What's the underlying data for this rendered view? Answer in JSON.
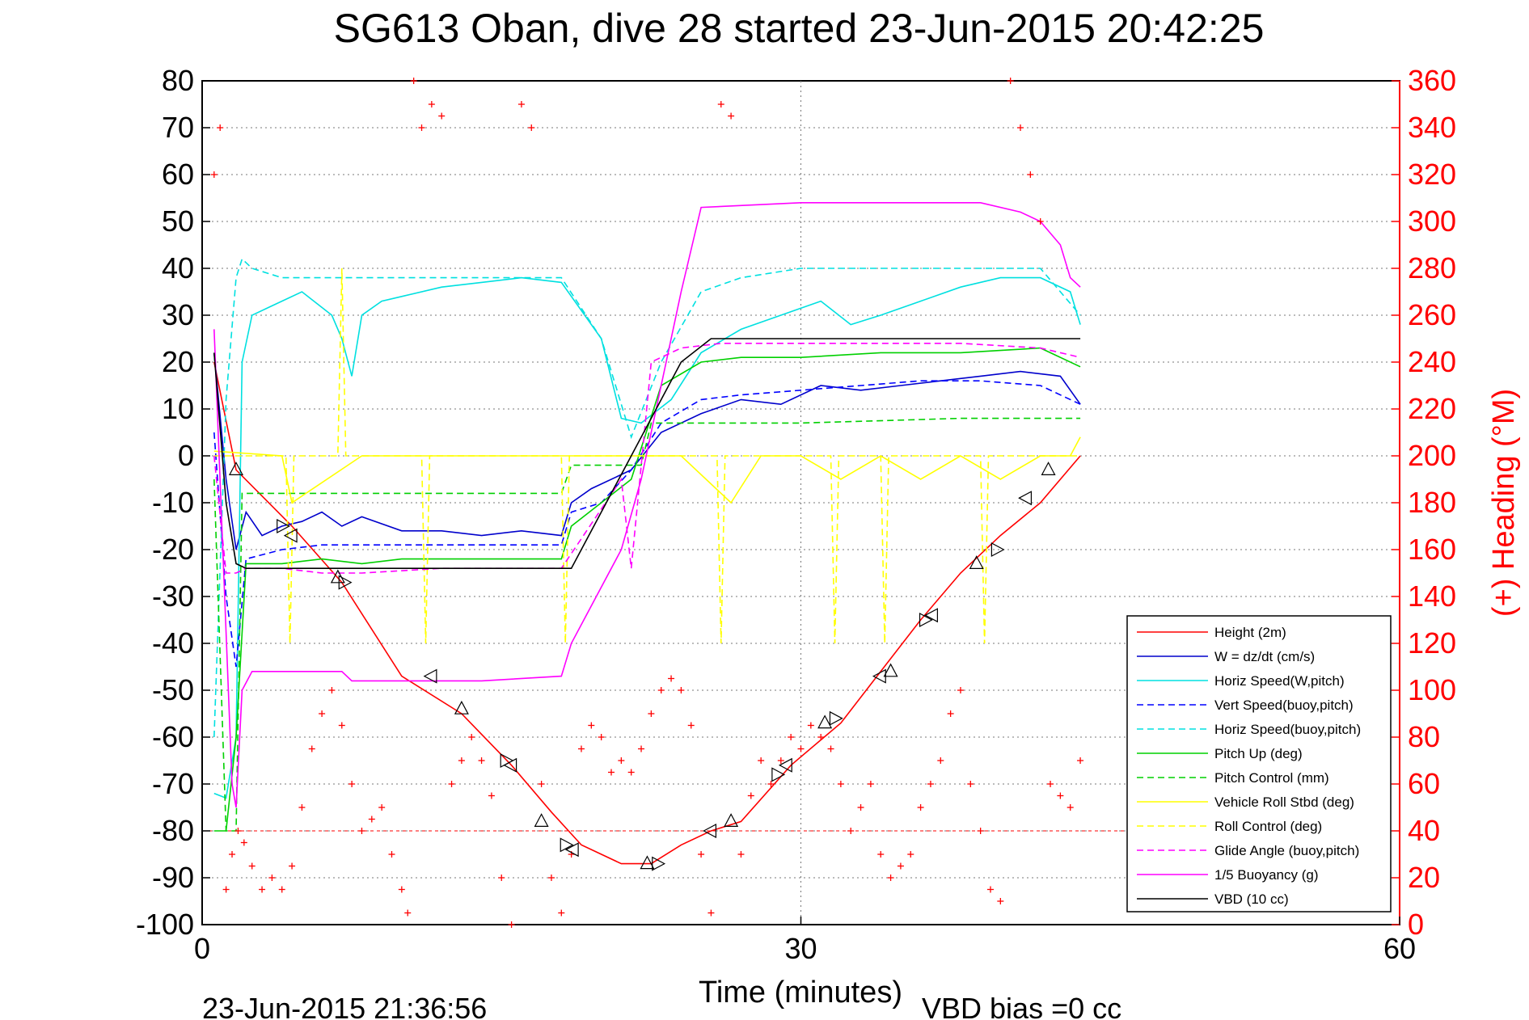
{
  "chart_data": {
    "type": "line",
    "title": "SG613 Oban, dive 28 started 23-Jun-2015 20:42:25",
    "xlabel": "Time (minutes)",
    "ylabel_right": "(+) Heading (°M)",
    "xlim": [
      0,
      60
    ],
    "ylim": [
      -100,
      80
    ],
    "ylim_right": [
      0,
      360
    ],
    "x_ticks": [
      "0",
      "30",
      "60"
    ],
    "y_ticks": [
      "80",
      "70",
      "60",
      "50",
      "40",
      "30",
      "20",
      "10",
      "0",
      "-10",
      "-20",
      "-30",
      "-40",
      "-50",
      "-60",
      "-70",
      "-80",
      "-90",
      "-100"
    ],
    "y_ticks_right": [
      "360",
      "340",
      "320",
      "300",
      "280",
      "260",
      "240",
      "220",
      "200",
      "180",
      "160",
      "140",
      "120",
      "100",
      "80",
      "60",
      "40",
      "20",
      "0"
    ],
    "grid": true,
    "legend_position": "bottom-right",
    "footer_left": "23-Jun-2015 21:36:56",
    "footer_right": "VBD bias =0 cc",
    "reference_line_y": -80,
    "series": [
      {
        "name": "Height (2m)",
        "color": "#ff0000",
        "dash": "solid",
        "x": [
          0.6,
          1.7,
          4.5,
          7.0,
          10.0,
          13.0,
          15.5,
          17.5,
          19.0,
          21.0,
          22.5,
          24.0,
          25.5,
          27.0,
          29.5,
          32.0,
          34.0,
          36.0,
          38.0,
          40.0,
          42.0,
          44.0
        ],
        "y": [
          20,
          -3,
          -15,
          -27,
          -47,
          -55,
          -66,
          -76,
          -83,
          -87,
          -87,
          -83,
          -80,
          -78,
          -66,
          -57,
          -46,
          -35,
          -25,
          -17,
          -10,
          0
        ]
      },
      {
        "name": "W = dz/dt (cm/s)",
        "color": "#0000cc",
        "dash": "solid",
        "x": [
          0.6,
          1.2,
          1.7,
          2.2,
          3.0,
          4.0,
          5.0,
          6.0,
          7.0,
          8.0,
          10.0,
          12.0,
          14.0,
          16.0,
          18.0,
          18.5,
          19.5,
          21.5,
          23.0,
          25.0,
          27.0,
          29.0,
          31.0,
          33.0,
          35.0,
          37.0,
          39.0,
          41.0,
          43.0,
          44.0
        ],
        "y": [
          22,
          -5,
          -20,
          -12,
          -17,
          -15,
          -14,
          -12,
          -15,
          -13,
          -16,
          -16,
          -17,
          -16,
          -17,
          -10,
          -7,
          -3,
          5,
          9,
          12,
          11,
          15,
          14,
          15,
          16,
          17,
          18,
          17,
          11
        ]
      },
      {
        "name": "Horiz Speed(W,pitch)",
        "color": "#00e0e0",
        "dash": "solid",
        "x": [
          0.6,
          1.2,
          1.7,
          2.0,
          2.5,
          3.5,
          5.0,
          6.5,
          7.0,
          7.5,
          8.0,
          9.0,
          10.0,
          12.0,
          14.0,
          16.0,
          18.0,
          20.0,
          21.0,
          22.0,
          23.5,
          25.0,
          27.0,
          29.0,
          31.0,
          32.5,
          34.0,
          36.0,
          38.0,
          40.0,
          42.0,
          43.5,
          44.0
        ],
        "y": [
          -72,
          -73,
          -60,
          20,
          30,
          32,
          35,
          30,
          25,
          17,
          30,
          33,
          34,
          36,
          37,
          38,
          37,
          25,
          8,
          7,
          12,
          22,
          27,
          30,
          33,
          28,
          30,
          33,
          36,
          38,
          38,
          35,
          28
        ]
      },
      {
        "name": "Vert Speed(buoy,pitch)",
        "color": "#0000ff",
        "dash": "dashed",
        "x": [
          0.6,
          1.2,
          1.7,
          2.2,
          4.0,
          6.0,
          8.0,
          10.0,
          14.0,
          18.0,
          18.5,
          20.0,
          21.5,
          23.0,
          25.0,
          27.0,
          30.0,
          33.0,
          36.0,
          39.0,
          42.0,
          44.0
        ],
        "y": [
          5,
          -30,
          -45,
          -22,
          -20,
          -19,
          -19,
          -19,
          -19,
          -19,
          -12,
          -10,
          -3,
          7,
          12,
          13,
          14,
          15,
          16,
          16,
          15,
          11
        ]
      },
      {
        "name": "Horiz Speed(buoy,pitch)",
        "color": "#00e0e0",
        "dash": "dashed",
        "x": [
          0.6,
          1.2,
          1.7,
          2.0,
          2.5,
          4.0,
          6.0,
          8.0,
          10.0,
          14.0,
          18.0,
          20.0,
          21.5,
          23.0,
          25.0,
          27.0,
          30.0,
          34.0,
          38.0,
          42.0,
          44.0
        ],
        "y": [
          -60,
          12,
          38,
          42,
          40,
          38,
          38,
          38,
          38,
          38,
          38,
          25,
          4,
          20,
          35,
          38,
          40,
          40,
          40,
          40,
          30
        ]
      },
      {
        "name": "Pitch Up (deg)",
        "color": "#00d000",
        "dash": "solid",
        "x": [
          0.6,
          1.2,
          1.7,
          2.2,
          4.0,
          6.0,
          8.0,
          10.0,
          14.0,
          18.0,
          18.5,
          21.5,
          23.0,
          25.0,
          27.0,
          30.0,
          34.0,
          38.0,
          42.0,
          44.0
        ],
        "y": [
          -80,
          -80,
          -60,
          -23,
          -23,
          -22,
          -23,
          -22,
          -22,
          -22,
          -15,
          -5,
          15,
          20,
          21,
          21,
          22,
          22,
          23,
          19
        ]
      },
      {
        "name": "Pitch Control (mm)",
        "color": "#00d000",
        "dash": "dashed",
        "x": [
          0.6,
          1.2,
          1.7,
          2.0,
          18.0,
          18.5,
          22.0,
          22.5,
          30.0,
          38.0,
          44.0
        ],
        "y": [
          -5,
          -80,
          -80,
          -8,
          -8,
          -2,
          -2,
          7,
          7,
          8,
          8
        ]
      },
      {
        "name": "Vehicle Roll Stbd (deg)",
        "color": "#ffff00",
        "dash": "solid",
        "x": [
          0.6,
          4.0,
          4.5,
          8.0,
          11.0,
          14.0,
          18.0,
          21.0,
          24.0,
          26.5,
          28.0,
          30.0,
          32.0,
          34.0,
          36.0,
          38.0,
          40.0,
          42.0,
          43.5,
          44.0
        ],
        "y": [
          1,
          0,
          -10,
          0,
          0,
          0,
          0,
          0,
          0,
          -10,
          0,
          0,
          -5,
          0,
          -5,
          0,
          -5,
          0,
          0,
          4
        ]
      },
      {
        "name": "Roll Control (deg)",
        "color": "#ffff00",
        "dash": "dashed",
        "x": [
          0.6,
          4.2,
          4.4,
          4.6,
          6.8,
          7.0,
          7.2,
          11.0,
          11.2,
          11.4,
          18.0,
          18.2,
          18.4,
          25.8,
          26.0,
          26.2,
          31.5,
          31.7,
          31.9,
          34.0,
          34.2,
          34.4,
          39.0,
          39.2,
          39.4,
          44.0
        ],
        "y": [
          0,
          0,
          -40,
          0,
          0,
          40,
          0,
          0,
          -40,
          0,
          0,
          -40,
          0,
          0,
          -40,
          0,
          0,
          -40,
          0,
          0,
          -40,
          0,
          0,
          -40,
          0,
          0
        ]
      },
      {
        "name": "Glide Angle (buoy,pitch)",
        "color": "#ff00ff",
        "dash": "dashed",
        "x": [
          0.6,
          1.2,
          1.7,
          2.2,
          4.0,
          6.0,
          8.0,
          12.0,
          16.0,
          18.0,
          21.0,
          21.5,
          22.5,
          24.0,
          26.0,
          30.0,
          34.0,
          38.0,
          42.0,
          44.0
        ],
        "y": [
          0,
          -25,
          -25,
          -24,
          -24,
          -25,
          -25,
          -24,
          -24,
          -24,
          -5,
          -24,
          20,
          23,
          24,
          24,
          24,
          24,
          23,
          21
        ]
      },
      {
        "name": "1/5 Buoyancy (g)",
        "color": "#ff00ff",
        "dash": "solid",
        "x": [
          0.6,
          1.5,
          1.7,
          2.0,
          2.5,
          4.0,
          7.0,
          7.5,
          10.0,
          14.0,
          18.0,
          18.5,
          21.0,
          22.0,
          24.0,
          25.0,
          30.0,
          35.0,
          39.0,
          41.0,
          42.0,
          43.0,
          43.5,
          44.0
        ],
        "y": [
          27,
          -70,
          -75,
          -50,
          -46,
          -46,
          -46,
          -48,
          -48,
          -48,
          -47,
          -40,
          -20,
          -5,
          35,
          53,
          54,
          54,
          54,
          52,
          50,
          45,
          38,
          36
        ]
      },
      {
        "name": "VBD (10 cc)",
        "color": "#000000",
        "dash": "solid",
        "x": [
          0.6,
          1.2,
          1.7,
          2.2,
          6.0,
          10.0,
          14.0,
          18.5,
          21.5,
          24.0,
          25.5,
          30.0,
          35.0,
          40.0,
          44.0
        ],
        "y": [
          22,
          -10,
          -23,
          -24,
          -24,
          -24,
          -24,
          -24,
          0,
          20,
          25,
          25,
          25,
          25,
          25
        ]
      }
    ],
    "heading_points": {
      "name": "(+) Heading (°M)",
      "color": "#ff0000",
      "x": [
        0.6,
        0.9,
        1.2,
        1.5,
        1.8,
        2.1,
        2.5,
        3.0,
        3.5,
        4.0,
        4.5,
        5.0,
        5.5,
        6.0,
        6.5,
        7.0,
        7.5,
        8.0,
        8.5,
        9.0,
        9.5,
        10.0,
        10.3,
        10.6,
        11.0,
        11.5,
        12.0,
        12.5,
        13.0,
        13.5,
        14.0,
        14.5,
        15.0,
        15.5,
        16.0,
        16.5,
        17.0,
        17.5,
        18.0,
        18.5,
        19.0,
        19.5,
        20.0,
        20.5,
        21.0,
        21.5,
        22.0,
        22.5,
        23.0,
        23.5,
        24.0,
        24.5,
        25.0,
        25.5,
        26.0,
        26.5,
        27.0,
        27.5,
        28.0,
        28.5,
        29.0,
        29.5,
        30.0,
        30.5,
        31.0,
        31.5,
        32.0,
        32.5,
        33.0,
        33.5,
        34.0,
        34.5,
        35.0,
        35.5,
        36.0,
        36.5,
        37.0,
        37.5,
        38.0,
        38.5,
        39.0,
        39.5,
        40.0,
        40.5,
        41.0,
        41.5,
        42.0,
        42.5,
        43.0,
        43.5,
        44.0
      ],
      "y": [
        320,
        340,
        15,
        30,
        40,
        35,
        25,
        15,
        20,
        15,
        25,
        50,
        75,
        90,
        100,
        85,
        60,
        40,
        45,
        50,
        30,
        15,
        5,
        360,
        340,
        350,
        345,
        60,
        70,
        80,
        70,
        55,
        20,
        0,
        350,
        340,
        60,
        20,
        5,
        30,
        75,
        85,
        80,
        65,
        70,
        65,
        75,
        90,
        100,
        105,
        100,
        85,
        30,
        5,
        350,
        345,
        30,
        55,
        70,
        60,
        70,
        80,
        75,
        85,
        80,
        75,
        60,
        40,
        50,
        60,
        30,
        20,
        25,
        30,
        50,
        60,
        70,
        90,
        100,
        60,
        40,
        15,
        10,
        360,
        340,
        320,
        300,
        60,
        55,
        50,
        70
      ]
    },
    "markers": {
      "x": [
        1.7,
        4.0,
        4.5,
        6.8,
        7.1,
        11.5,
        13.0,
        15.2,
        15.5,
        17.0,
        18.2,
        18.6,
        22.3,
        22.8,
        25.5,
        26.5,
        28.8,
        29.3,
        31.2,
        31.7,
        34.0,
        34.5,
        36.2,
        36.6,
        38.8,
        39.8,
        41.3,
        42.4
      ],
      "y": [
        -3,
        -15,
        -17,
        -26,
        -27,
        -47,
        -54,
        -65,
        -66,
        -78,
        -83,
        -84,
        -87,
        -87,
        -80,
        -78,
        -68,
        -66,
        -57,
        -56,
        -47,
        -46,
        -35,
        -34,
        -23,
        -20,
        -9,
        -3
      ]
    }
  }
}
